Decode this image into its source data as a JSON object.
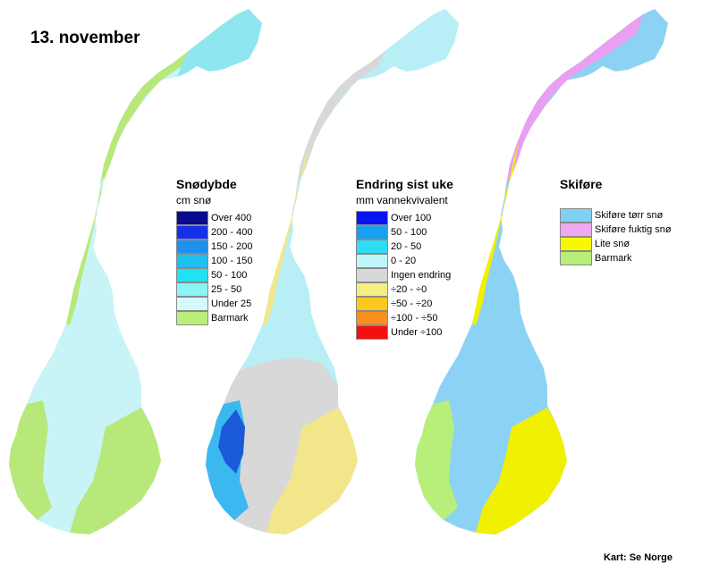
{
  "date_title": "13. november",
  "credit": "Kart: Se Norge",
  "maps": [
    {
      "id": "snodybde",
      "title": "Snødybde",
      "unit": "cm snø",
      "base_color": "#c8f4f8",
      "coast_color": "#b8e87a",
      "accent_colors": [
        "#8fe6f0",
        "#4dd2ec",
        "#1e9ef0",
        "#0b1fb2"
      ],
      "legend": [
        {
          "label": "Over 400",
          "color": "#0a0a8c"
        },
        {
          "label": "200 - 400",
          "color": "#1530e6"
        },
        {
          "label": "150 - 200",
          "color": "#1e90f0"
        },
        {
          "label": "100 - 150",
          "color": "#1ec0f0"
        },
        {
          "label": "50 - 100",
          "color": "#20e2f2"
        },
        {
          "label": "25 - 50",
          "color": "#8af4f6"
        },
        {
          "label": "Under 25",
          "color": "#d4fafc"
        },
        {
          "label": "Barmark",
          "color": "#b8ef7a"
        }
      ]
    },
    {
      "id": "endring",
      "title": "Endring sist uke",
      "unit": "mm vannekvivalent",
      "base_color": "#b8eef6",
      "coast_color": "#d8d8d8",
      "accent_colors": [
        "#f2e68a",
        "#3cb8f0",
        "#1a5ad8",
        "#0a1a9a"
      ],
      "legend": [
        {
          "label": "Over 100",
          "color": "#0a14f0"
        },
        {
          "label": "50 - 100",
          "color": "#18a0f0"
        },
        {
          "label": "20 - 50",
          "color": "#30dcf2"
        },
        {
          "label": "0 - 20",
          "color": "#bef6fa"
        },
        {
          "label": "Ingen endring",
          "color": "#d8d8d8"
        },
        {
          "label": "÷20 - ÷0",
          "color": "#f6ee80"
        },
        {
          "label": "÷50 - ÷20",
          "color": "#fcc81e"
        },
        {
          "label": "÷100 - ÷50",
          "color": "#f89020"
        },
        {
          "label": "Under ÷100",
          "color": "#f21010"
        }
      ]
    },
    {
      "id": "skifore",
      "title": "Skiføre",
      "unit": "",
      "base_color": "#8cd2f4",
      "coast_color": "#b8ef7a",
      "accent_colors": [
        "#f0f000",
        "#e8a0f0",
        "#b8ef7a",
        "#ffffff"
      ],
      "legend": [
        {
          "label": "Skiføre tørr snø",
          "color": "#80d0f4"
        },
        {
          "label": "Skiføre fuktig snø",
          "color": "#f0a8f0"
        },
        {
          "label": "Lite snø",
          "color": "#f8f800"
        },
        {
          "label": "Barmark",
          "color": "#b8ef7a"
        }
      ]
    }
  ]
}
